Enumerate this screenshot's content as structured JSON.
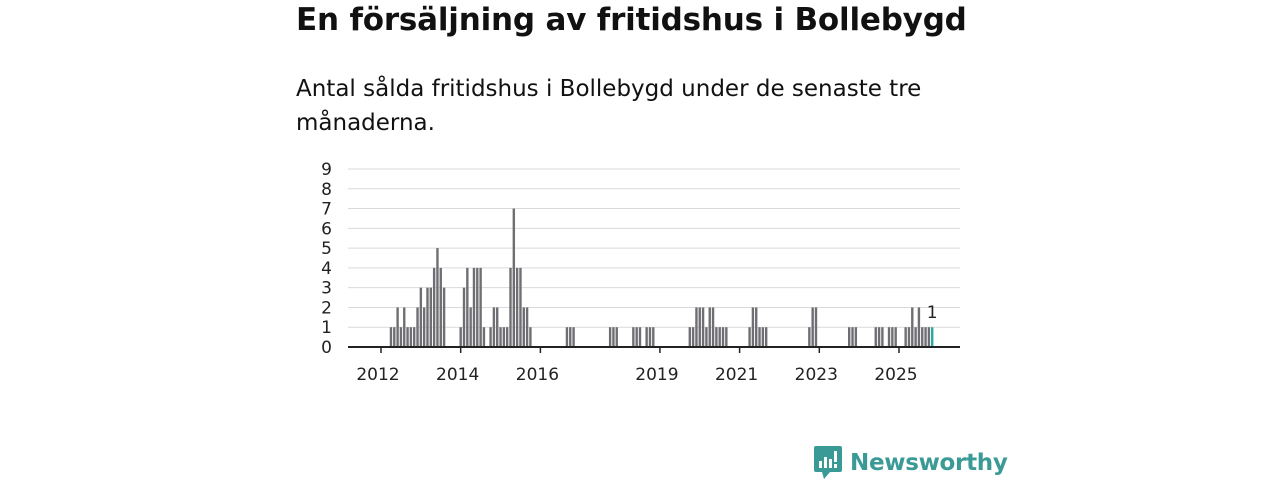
{
  "title": "En försäljning av fritidshus i Bollebygd",
  "subtitle": "Antal sålda fritidshus i Bollebygd under de senaste tre månaderna.",
  "brand": {
    "name": "Newsworthy"
  },
  "colors": {
    "bar": "#6e6e73",
    "highlight": "#2aa8a0",
    "grid": "#d9d9d9",
    "axis": "#222222"
  },
  "chart_data": {
    "type": "bar",
    "title": "En försäljning av fritidshus i Bollebygd",
    "xlabel": "",
    "ylabel": "",
    "ylim": [
      0,
      9
    ],
    "yticks": [
      "0",
      "1",
      "2",
      "3",
      "4",
      "5",
      "6",
      "7",
      "8",
      "9"
    ],
    "xticks": [
      {
        "label": "2012",
        "year": 2012
      },
      {
        "label": "2014",
        "year": 2014
      },
      {
        "label": "2016",
        "year": 2016
      },
      {
        "label": "2019",
        "year": 2019
      },
      {
        "label": "2021",
        "year": 2021
      },
      {
        "label": "2023",
        "year": 2023
      },
      {
        "label": "2025",
        "year": 2025
      }
    ],
    "x_range": [
      "2011-01",
      "2026-09"
    ],
    "series_note": "Rolling three-month count, one bar per month",
    "months": [
      "2012-04",
      "2012-05",
      "2012-06",
      "2012-07",
      "2012-08",
      "2012-09",
      "2012-10",
      "2012-11",
      "2012-12",
      "2013-01",
      "2013-02",
      "2013-03",
      "2013-04",
      "2013-05",
      "2013-06",
      "2013-07",
      "2013-08",
      "2013-09",
      "2014-01",
      "2014-02",
      "2014-03",
      "2014-04",
      "2014-05",
      "2014-06",
      "2014-07",
      "2014-08",
      "2014-09",
      "2014-10",
      "2014-11",
      "2014-12",
      "2015-01",
      "2015-02",
      "2015-03",
      "2015-04",
      "2015-05",
      "2015-06",
      "2015-07",
      "2015-08",
      "2015-09",
      "2015-10",
      "2015-11",
      "2015-12",
      "2016-01",
      "2016-09",
      "2016-10",
      "2016-11",
      "2017-10",
      "2017-11",
      "2017-12",
      "2018-05",
      "2018-06",
      "2018-07",
      "2018-09",
      "2018-10",
      "2018-11",
      "2019-10",
      "2019-11",
      "2019-12",
      "2020-01",
      "2020-02",
      "2020-03",
      "2020-04",
      "2020-05",
      "2020-06",
      "2020-07",
      "2020-08",
      "2020-09",
      "2021-04",
      "2021-05",
      "2021-06",
      "2021-07",
      "2021-08",
      "2021-09",
      "2022-10",
      "2022-11",
      "2022-12",
      "2023-10",
      "2023-11",
      "2023-12",
      "2024-06",
      "2024-07",
      "2024-08",
      "2024-10",
      "2024-11",
      "2024-12",
      "2025-03",
      "2025-04",
      "2025-05",
      "2025-06",
      "2025-07",
      "2025-08",
      "2025-09",
      "2025-10",
      "2025-11"
    ],
    "values": [
      1,
      1,
      2,
      1,
      2,
      1,
      1,
      1,
      2,
      3,
      2,
      3,
      3,
      4,
      5,
      4,
      3,
      0,
      1,
      3,
      4,
      2,
      4,
      4,
      4,
      1,
      0,
      1,
      2,
      2,
      1,
      1,
      1,
      4,
      7,
      4,
      4,
      2,
      2,
      1,
      0,
      0,
      0,
      1,
      1,
      1,
      1,
      1,
      1,
      1,
      1,
      1,
      1,
      1,
      1,
      1,
      1,
      2,
      2,
      2,
      1,
      2,
      2,
      1,
      1,
      1,
      1,
      1,
      2,
      2,
      1,
      1,
      1,
      1,
      2,
      2,
      1,
      1,
      1,
      1,
      1,
      1,
      1,
      1,
      1,
      1,
      1,
      2,
      1,
      2,
      1,
      1,
      1,
      1
    ],
    "highlight_index": 93,
    "annotation": {
      "text": "1"
    }
  }
}
